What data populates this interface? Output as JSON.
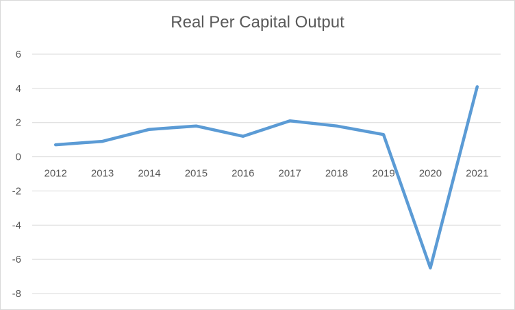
{
  "chart_data": {
    "type": "line",
    "title": "Real Per Capital Output",
    "xlabel": "",
    "ylabel": "",
    "categories": [
      "2012",
      "2013",
      "2014",
      "2015",
      "2016",
      "2017",
      "2018",
      "2019",
      "2020",
      "2021"
    ],
    "series": [
      {
        "values": [
          0.7,
          0.9,
          1.6,
          1.8,
          1.2,
          2.1,
          1.8,
          1.3,
          -6.5,
          4.1
        ],
        "color": "#5b9bd5"
      }
    ],
    "ylim": [
      -8,
      6
    ],
    "yticks": [
      6,
      4,
      2,
      0,
      -2,
      -4,
      -6,
      -8
    ],
    "grid": true,
    "legend": "none"
  }
}
